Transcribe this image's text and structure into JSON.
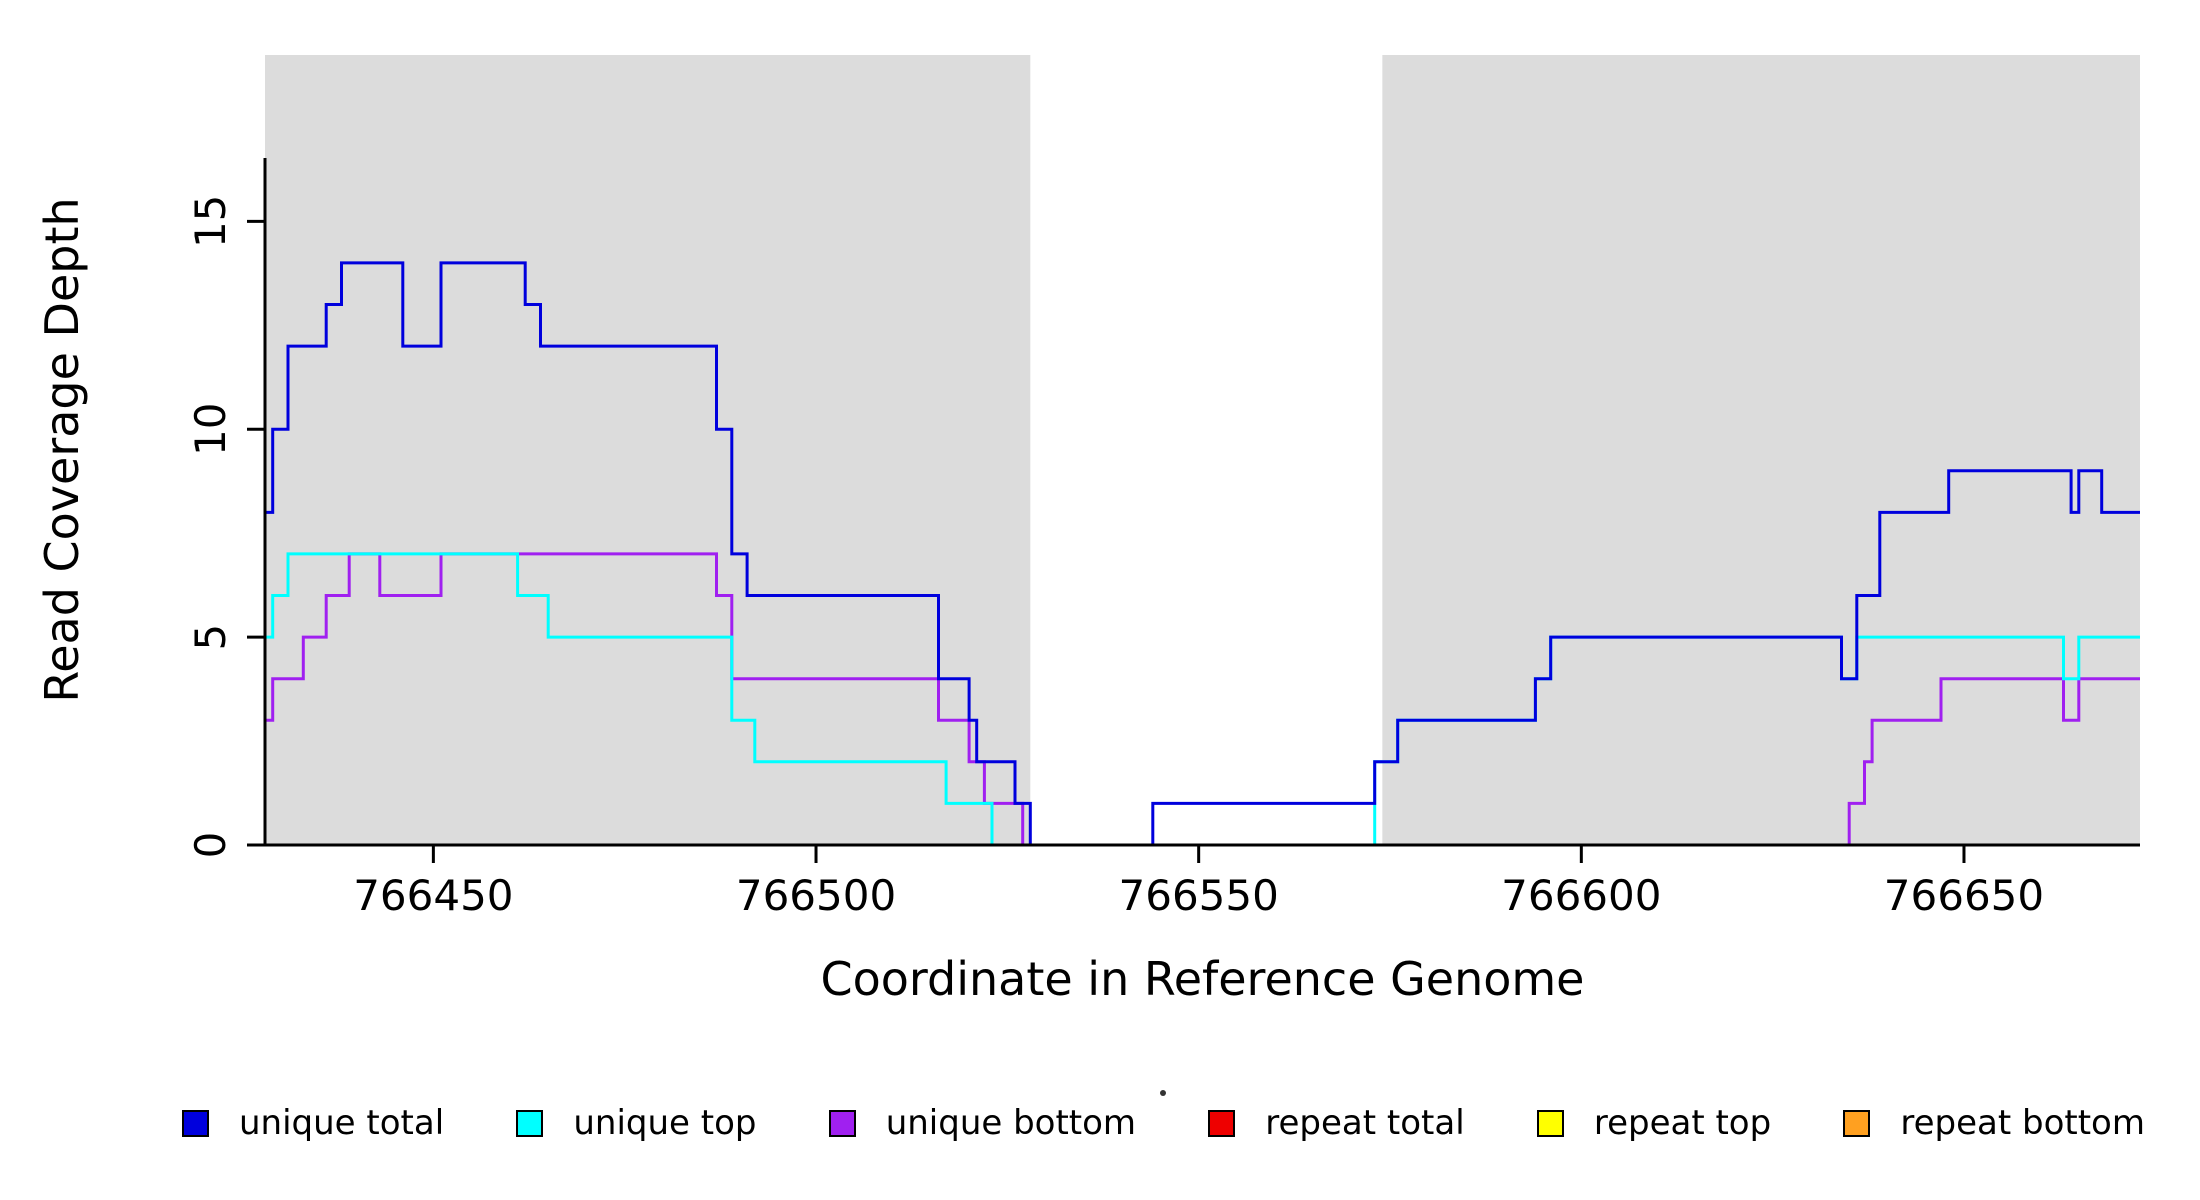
{
  "chart_data": {
    "type": "line",
    "subtype": "step-after",
    "title": "",
    "xlabel": "Coordinate in Reference Genome",
    "ylabel": "Read Coverage Depth",
    "xlim": [
      766428,
      766673
    ],
    "ylim": [
      0,
      19
    ],
    "xticks": [
      766450,
      766500,
      766550,
      766600,
      766650
    ],
    "yticks": [
      0,
      5,
      10,
      15
    ],
    "grid": false,
    "background_regions": [
      {
        "x0": 766428,
        "x1": 766528,
        "color": "#DCDCDC"
      },
      {
        "x0": 766574,
        "x1": 766673,
        "color": "#DCDCDC"
      }
    ],
    "series": [
      {
        "name": "repeat total",
        "color": "#EE0000",
        "points": [
          [
            766428,
            0
          ]
        ]
      },
      {
        "name": "repeat top",
        "color": "#FFFF00",
        "points": [
          [
            766428,
            0
          ]
        ]
      },
      {
        "name": "unique bottom",
        "color": "#A020F0",
        "points": [
          [
            766428,
            3
          ],
          [
            766429,
            4
          ],
          [
            766433,
            5
          ],
          [
            766436,
            6
          ],
          [
            766439,
            7
          ],
          [
            766443,
            6
          ],
          [
            766451,
            7
          ],
          [
            766487,
            6
          ],
          [
            766489,
            4
          ],
          [
            766516,
            3
          ],
          [
            766520,
            2
          ],
          [
            766522,
            1
          ],
          [
            766527,
            0
          ],
          [
            766635,
            1
          ],
          [
            766637,
            2
          ],
          [
            766638,
            3
          ],
          [
            766647,
            4
          ],
          [
            766663,
            3
          ],
          [
            766665,
            4
          ]
        ]
      },
      {
        "name": "unique top",
        "color": "#00FFFF",
        "points": [
          [
            766428,
            5
          ],
          [
            766429,
            6
          ],
          [
            766431,
            7
          ],
          [
            766461,
            6
          ],
          [
            766465,
            5
          ],
          [
            766489,
            3
          ],
          [
            766492,
            2
          ],
          [
            766517,
            1
          ],
          [
            766523,
            0
          ],
          [
            766573,
            2
          ],
          [
            766576,
            3
          ],
          [
            766594,
            4
          ],
          [
            766596,
            5
          ],
          [
            766634,
            4
          ],
          [
            766636,
            5
          ],
          [
            766663,
            4
          ],
          [
            766665,
            5
          ]
        ]
      },
      {
        "name": "repeat bottom",
        "color": "#FFA020",
        "points": [
          [
            766428,
            0
          ]
        ]
      },
      {
        "name": "unique total",
        "color": "#0000DD",
        "points": [
          [
            766428,
            8
          ],
          [
            766429,
            10
          ],
          [
            766431,
            12
          ],
          [
            766436,
            13
          ],
          [
            766438,
            14
          ],
          [
            766446,
            12
          ],
          [
            766451,
            14
          ],
          [
            766462,
            13
          ],
          [
            766464,
            12
          ],
          [
            766487,
            10
          ],
          [
            766489,
            7
          ],
          [
            766491,
            6
          ],
          [
            766516,
            4
          ],
          [
            766520,
            3
          ],
          [
            766521,
            2
          ],
          [
            766526,
            1
          ],
          [
            766528,
            0
          ],
          [
            766544,
            1
          ],
          [
            766573,
            2
          ],
          [
            766576,
            3
          ],
          [
            766594,
            4
          ],
          [
            766596,
            5
          ],
          [
            766634,
            4
          ],
          [
            766636,
            6
          ],
          [
            766639,
            8
          ],
          [
            766648,
            9
          ],
          [
            766664,
            8
          ],
          [
            766665,
            9
          ],
          [
            766668,
            8
          ]
        ]
      }
    ],
    "legend": {
      "position": "bottom",
      "items": [
        {
          "label": "unique total",
          "color": "#0000DD"
        },
        {
          "label": "unique top",
          "color": "#00FFFF"
        },
        {
          "label": "unique bottom",
          "color": "#A020F0"
        },
        {
          "label": "repeat total",
          "color": "#EE0000"
        },
        {
          "label": "repeat top",
          "color": "#FFFF00"
        },
        {
          "label": "repeat bottom",
          "color": "#FFA020"
        }
      ]
    }
  }
}
